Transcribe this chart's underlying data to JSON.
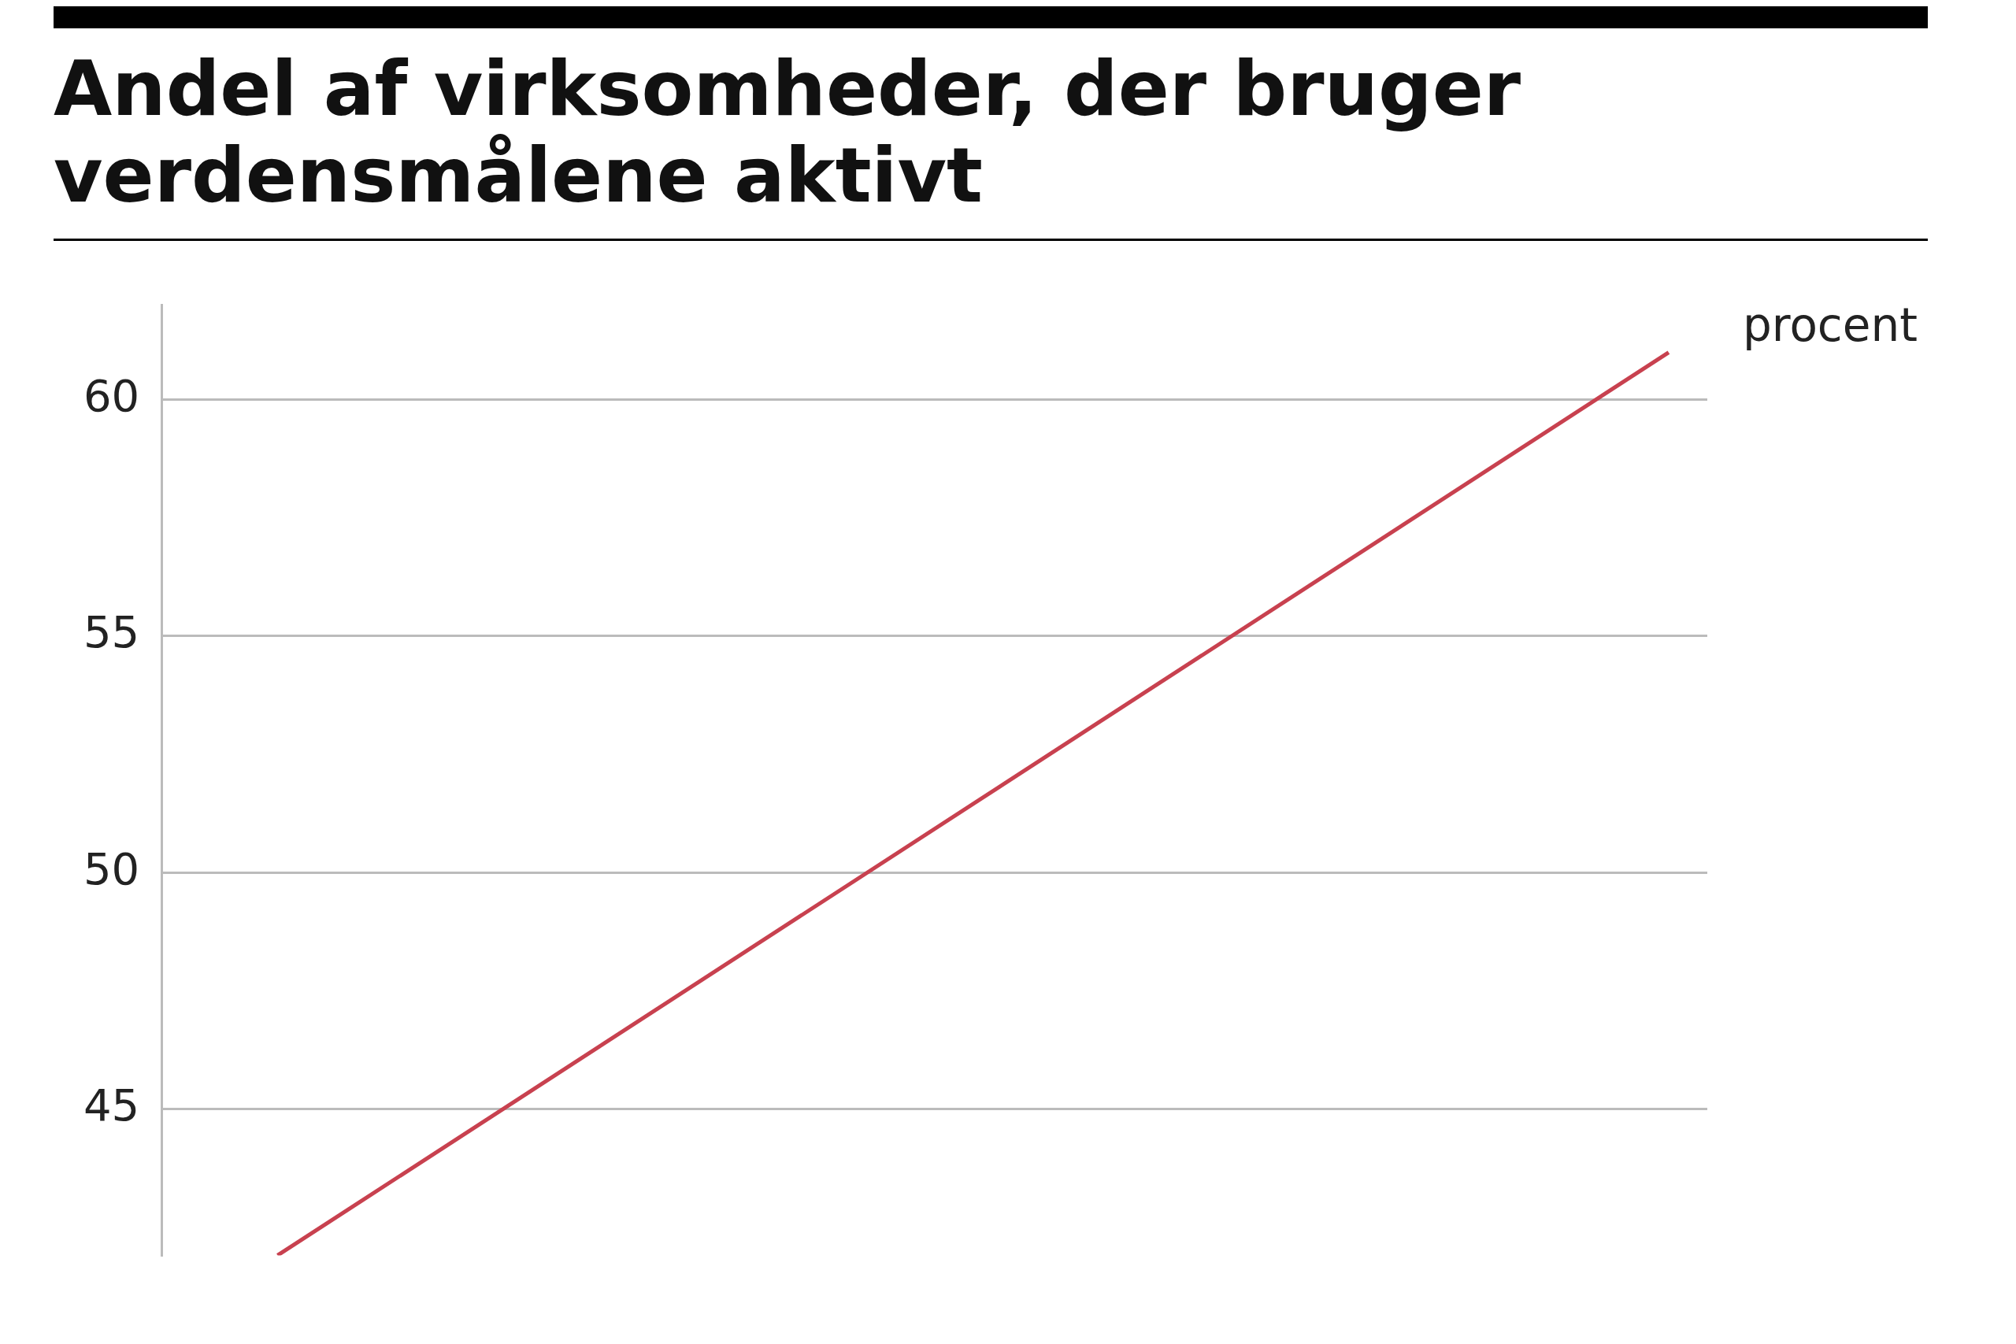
{
  "chart_data": {
    "type": "line",
    "title": "Andel af virksomheder, der bruger verdensmålene aktivt",
    "categories": [
      null,
      null,
      null,
      null,
      null,
      null,
      null,
      null,
      null,
      null,
      null,
      null,
      null,
      null,
      null,
      null,
      null,
      null,
      null,
      null
    ],
    "series": [
      {
        "color": "#c8414f",
        "values": [
          null,
          41.9,
          null,
          null,
          null,
          null,
          null,
          null,
          null,
          null,
          null,
          null,
          null,
          null,
          null,
          null,
          null,
          null,
          null,
          61.0
        ]
      }
    ],
    "ylim": [
      41.9,
      62
    ],
    "yticks": [
      45,
      50,
      55,
      60
    ],
    "grid": "y",
    "tick_labels": "y",
    "legend": false,
    "marker": "none",
    "line_style": "solid",
    "annotations": [
      "procent"
    ]
  }
}
